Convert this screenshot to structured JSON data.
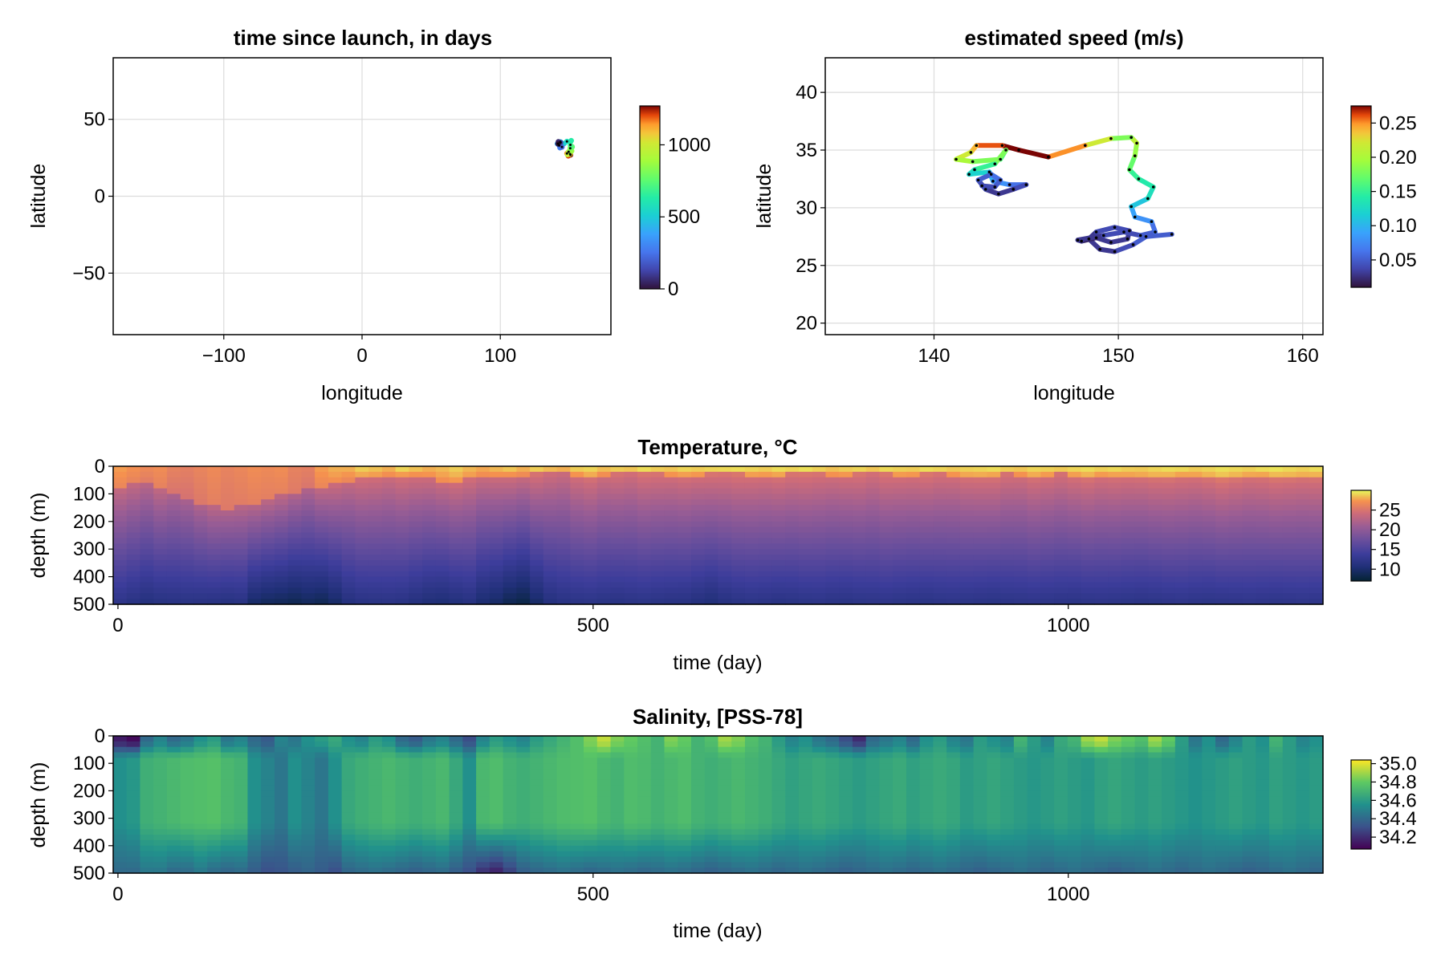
{
  "chart_data": [
    {
      "id": "launch",
      "type": "scatter",
      "title": "time since launch, in days",
      "xlabel": "longitude",
      "ylabel": "latitude",
      "xlim": [
        -180,
        180
      ],
      "ylim": [
        -90,
        90
      ],
      "xticks": [
        -100,
        0,
        100
      ],
      "xtick_labels": [
        "−100",
        "0",
        "100"
      ],
      "yticks": [
        -50,
        0,
        50
      ],
      "ytick_labels": [
        "−50",
        "0",
        "50"
      ],
      "grid": true,
      "colormap": "turbo",
      "colorbar": {
        "range": [
          0,
          1270
        ],
        "ticks": [
          0,
          500,
          1000
        ],
        "tick_labels": [
          "0",
          "500",
          "1000"
        ]
      },
      "track": [
        [
          150.8,
          26.9
        ],
        [
          149.2,
          26.2
        ],
        [
          148.2,
          27.8
        ],
        [
          149.8,
          28.6
        ],
        [
          150.5,
          27.4
        ],
        [
          148.6,
          27.1
        ],
        [
          149.4,
          28.9
        ],
        [
          151.6,
          29.4
        ],
        [
          150.6,
          31.2
        ],
        [
          152.0,
          32.1
        ],
        [
          150.7,
          33.4
        ],
        [
          151.3,
          36.1
        ],
        [
          148.2,
          35.6
        ],
        [
          146.2,
          34.3
        ],
        [
          143.5,
          35.3
        ],
        [
          141.3,
          34.1
        ],
        [
          142.6,
          33.0
        ],
        [
          143.2,
          31.5
        ],
        [
          144.6,
          32.0
        ],
        [
          142.3,
          33.6
        ],
        [
          143.6,
          34.9
        ],
        [
          142.0,
          35.4
        ],
        [
          141.8,
          34.1
        ]
      ]
    },
    {
      "id": "speed",
      "type": "line",
      "title": "estimated speed (m/s)",
      "xlabel": "longitude",
      "ylabel": "latitude",
      "xlim": [
        134.1,
        161.1
      ],
      "ylim": [
        19.0,
        43.0
      ],
      "xticks": [
        140,
        150,
        160
      ],
      "xtick_labels": [
        "140",
        "150",
        "160"
      ],
      "yticks": [
        20,
        25,
        30,
        35,
        40
      ],
      "ytick_labels": [
        "20",
        "25",
        "30",
        "35",
        "40"
      ],
      "grid": true,
      "colormap": "turbo",
      "colorbar": {
        "range": [
          0.01,
          0.275
        ],
        "ticks": [
          0.05,
          0.1,
          0.15,
          0.2,
          0.25
        ],
        "tick_labels": [
          "0.05",
          "0.10",
          "0.15",
          "0.20",
          "0.25"
        ]
      },
      "track": [
        [
          152.9,
          27.7
        ],
        [
          151.5,
          27.5
        ],
        [
          150.8,
          26.8
        ],
        [
          149.8,
          26.2
        ],
        [
          149.0,
          26.4
        ],
        [
          148.4,
          27.3
        ],
        [
          148.8,
          27.9
        ],
        [
          149.8,
          28.3
        ],
        [
          150.6,
          28.0
        ],
        [
          150.5,
          27.3
        ],
        [
          149.6,
          27.0
        ],
        [
          148.8,
          27.4
        ],
        [
          148.0,
          27.1
        ],
        [
          147.8,
          27.2
        ],
        [
          149.2,
          27.6
        ],
        [
          150.3,
          27.9
        ],
        [
          151.2,
          27.6
        ],
        [
          152.0,
          27.9
        ],
        [
          151.8,
          28.8
        ],
        [
          150.9,
          29.2
        ],
        [
          150.7,
          30.1
        ],
        [
          151.6,
          30.8
        ],
        [
          151.9,
          31.8
        ],
        [
          151.1,
          32.5
        ],
        [
          150.6,
          33.3
        ],
        [
          150.9,
          34.5
        ],
        [
          151.0,
          35.6
        ],
        [
          150.7,
          36.1
        ],
        [
          149.6,
          36.0
        ],
        [
          148.2,
          35.4
        ],
        [
          146.2,
          34.4
        ],
        [
          144.6,
          35.0
        ],
        [
          143.7,
          35.4
        ],
        [
          142.3,
          35.4
        ],
        [
          142.0,
          34.8
        ],
        [
          141.2,
          34.2
        ],
        [
          142.1,
          34.0
        ],
        [
          143.6,
          34.2
        ],
        [
          143.9,
          35.0
        ],
        [
          143.3,
          33.8
        ],
        [
          142.2,
          33.3
        ],
        [
          141.9,
          32.9
        ],
        [
          143.0,
          33.1
        ],
        [
          143.2,
          32.3
        ],
        [
          144.1,
          32.0
        ],
        [
          145.0,
          32.0
        ],
        [
          144.3,
          31.6
        ],
        [
          143.5,
          31.2
        ],
        [
          142.8,
          31.6
        ],
        [
          142.4,
          32.4
        ],
        [
          143.1,
          32.9
        ],
        [
          143.6,
          32.4
        ],
        [
          143.3,
          31.8
        ],
        [
          142.6,
          31.9
        ]
      ],
      "speeds": [
        0.05,
        0.05,
        0.04,
        0.03,
        0.03,
        0.03,
        0.04,
        0.04,
        0.03,
        0.03,
        0.03,
        0.02,
        0.03,
        0.03,
        0.04,
        0.04,
        0.05,
        0.06,
        0.08,
        0.09,
        0.11,
        0.13,
        0.14,
        0.15,
        0.17,
        0.19,
        0.21,
        0.18,
        0.22,
        0.25,
        0.275,
        0.275,
        0.26,
        0.24,
        0.22,
        0.2,
        0.18,
        0.16,
        0.18,
        0.15,
        0.13,
        0.12,
        0.1,
        0.08,
        0.06,
        0.04,
        0.03,
        0.03,
        0.04,
        0.05,
        0.06,
        0.05,
        0.04
      ]
    },
    {
      "id": "temperature",
      "type": "heatmap",
      "title": "Temperature, °C",
      "xlabel": "time (day)",
      "ylabel": "depth (m)",
      "xlim": [
        -5,
        1268
      ],
      "ylim": [
        0,
        500
      ],
      "x_range": [
        -5,
        1265
      ],
      "xticks": [
        0,
        500,
        1000
      ],
      "xtick_labels": [
        "0",
        "500",
        "1000"
      ],
      "yticks": [
        0,
        100,
        200,
        300,
        400,
        500
      ],
      "ytick_labels": [
        "0",
        "100",
        "200",
        "300",
        "400",
        "500"
      ],
      "y_reversed": true,
      "colormap": "thermal",
      "colorbar": {
        "range": [
          7,
          30
        ],
        "ticks": [
          10,
          15,
          20,
          25
        ],
        "tick_labels": [
          "10",
          "15",
          "20",
          "25"
        ]
      },
      "mixed_layer_temp": [
        26.5,
        26.0,
        25.5,
        26.0,
        25.0,
        24.8,
        25.3,
        25.8,
        25.4,
        25.6,
        25.9,
        25.8,
        26.0,
        25.5,
        25.0,
        26.5,
        26.8,
        26.5,
        27.2,
        27.0,
        26.8,
        27.5,
        27.2,
        26.8,
        27.0,
        27.4,
        27.0,
        26.5,
        26.9,
        27.2,
        26.8,
        27.5,
        27.0,
        26.6,
        27.3,
        27.6,
        27.0,
        27.4,
        27.2,
        27.8,
        27.5,
        27.3,
        27.6,
        27.4,
        27.6,
        27.7,
        27.8,
        27.6,
        27.5,
        27.8,
        27.6,
        27.9,
        27.5,
        27.2,
        27.4,
        27.6,
        27.3,
        27.7,
        27.5,
        27.4,
        27.8,
        27.6,
        27.3,
        27.5,
        27.6,
        27.8,
        27.4,
        27.2,
        27.6,
        27.5,
        27.3,
        27.6,
        27.8,
        27.5,
        27.7,
        27.4,
        27.3,
        27.6,
        27.8,
        27.7,
        27.4,
        27.6,
        27.9,
        27.7,
        27.5,
        27.8,
        28.0,
        27.7,
        27.5,
        27.8
      ],
      "surface_temp": [
        27.5,
        27.0,
        26.5,
        26.8,
        26.0,
        25.8,
        26.2,
        26.6,
        26.1,
        26.4,
        26.8,
        26.6,
        26.8,
        26.0,
        25.8,
        27.5,
        28.0,
        28.0,
        28.8,
        28.5,
        28.0,
        29.0,
        28.5,
        28.0,
        28.3,
        28.8,
        28.2,
        27.8,
        28.2,
        28.6,
        28.0,
        28.8,
        28.3,
        28.0,
        28.8,
        29.0,
        28.4,
        28.8,
        28.6,
        29.2,
        28.8,
        28.6,
        29.0,
        28.8,
        29.0,
        29.1,
        29.2,
        29.0,
        28.8,
        29.2,
        29.0,
        29.3,
        28.9,
        28.5,
        28.8,
        29.0,
        28.6,
        29.1,
        28.9,
        28.8,
        29.2,
        29.0,
        28.7,
        28.9,
        29.0,
        29.2,
        28.8,
        28.6,
        29.0,
        28.9,
        28.7,
        29.0,
        29.2,
        28.9,
        29.1,
        28.8,
        28.7,
        29.0,
        29.2,
        29.1,
        28.8,
        29.0,
        29.3,
        29.1,
        28.9,
        29.2,
        29.4,
        29.1,
        28.9,
        29.2
      ],
      "mixed_layer_depth_m": [
        70,
        65,
        60,
        80,
        90,
        110,
        130,
        140,
        150,
        140,
        130,
        120,
        100,
        90,
        80,
        70,
        60,
        50,
        40,
        40,
        35,
        30,
        30,
        40,
        50,
        50,
        45,
        40,
        35,
        30,
        30,
        25,
        20,
        20,
        30,
        35,
        30,
        25,
        20,
        20,
        25,
        30,
        30,
        30,
        25,
        20,
        25,
        30,
        30,
        30,
        25,
        20,
        25,
        30,
        30,
        25,
        20,
        25,
        30,
        30,
        25,
        20,
        30,
        35,
        35,
        30,
        25,
        30,
        35,
        30,
        25,
        30,
        35,
        30,
        30,
        35,
        40,
        40,
        35,
        30,
        35,
        40,
        45,
        40,
        35,
        30,
        35,
        40,
        40,
        35
      ],
      "temp_at_500m": [
        12.0,
        11.5,
        11.0,
        11.3,
        11.5,
        11.6,
        11.5,
        11.4,
        11.2,
        11.4,
        9.5,
        9.0,
        8.8,
        8.5,
        9.0,
        8.6,
        9.5,
        11.0,
        11.5,
        11.6,
        11.7,
        11.5,
        11.0,
        10.5,
        10.3,
        10.8,
        11.2,
        10.0,
        9.5,
        8.5,
        8.0,
        9.5,
        11.0,
        11.5,
        11.7,
        11.8,
        11.6,
        11.5,
        11.7,
        11.8,
        11.6,
        11.5,
        11.4,
        11.0,
        10.6,
        11.2,
        11.6,
        11.8,
        11.7,
        11.5,
        11.6,
        11.8,
        11.9,
        11.7,
        11.6,
        11.8,
        11.9,
        12.0,
        11.8,
        11.7,
        11.6,
        11.8,
        11.9,
        11.8,
        11.7,
        11.6,
        11.8,
        11.9,
        12.0,
        11.9,
        11.8,
        11.7,
        11.9,
        12.0,
        11.9,
        11.8,
        11.7,
        11.8,
        12.0,
        12.1,
        11.9,
        11.8,
        11.9,
        12.0,
        12.1,
        12.0,
        11.9,
        12.0,
        12.1,
        12.0
      ]
    },
    {
      "id": "salinity",
      "type": "heatmap",
      "title": "Salinity, [PSS-78]",
      "xlabel": "time (day)",
      "ylabel": "depth (m)",
      "xlim": [
        -5,
        1268
      ],
      "ylim": [
        0,
        500
      ],
      "x_range": [
        -5,
        1265
      ],
      "xticks": [
        0,
        500,
        1000
      ],
      "xtick_labels": [
        "0",
        "500",
        "1000"
      ],
      "yticks": [
        0,
        100,
        200,
        300,
        400,
        500
      ],
      "ytick_labels": [
        "0",
        "100",
        "200",
        "300",
        "400",
        "500"
      ],
      "y_reversed": true,
      "colormap": "viridis",
      "colorbar": {
        "range": [
          34.07,
          35.04
        ],
        "ticks": [
          34.2,
          34.4,
          34.6,
          34.8,
          35.0
        ],
        "tick_labels": [
          "34.2",
          "34.4",
          "34.6",
          "34.8",
          "35.0"
        ]
      },
      "surface_salinity": [
        34.15,
        34.1,
        34.4,
        34.5,
        34.4,
        34.45,
        34.55,
        34.6,
        34.45,
        34.5,
        34.4,
        34.35,
        34.5,
        34.45,
        34.55,
        34.6,
        34.65,
        34.55,
        34.5,
        34.6,
        34.55,
        34.4,
        34.35,
        34.45,
        34.5,
        34.4,
        34.3,
        34.5,
        34.6,
        34.55,
        34.5,
        34.6,
        34.65,
        34.7,
        34.75,
        34.85,
        34.95,
        34.85,
        34.8,
        34.75,
        34.7,
        34.85,
        34.8,
        34.7,
        34.75,
        34.9,
        34.85,
        34.75,
        34.7,
        34.6,
        34.5,
        34.55,
        34.45,
        34.4,
        34.3,
        34.2,
        34.4,
        34.45,
        34.5,
        34.4,
        34.55,
        34.6,
        34.5,
        34.45,
        34.6,
        34.55,
        34.5,
        34.7,
        34.6,
        34.5,
        34.65,
        34.7,
        34.9,
        34.95,
        34.85,
        34.8,
        34.75,
        34.9,
        34.8,
        34.6,
        34.45,
        34.55,
        34.4,
        34.5,
        34.6,
        34.55,
        34.7,
        34.6,
        34.5,
        34.55
      ],
      "subsurface_salinity": [
        34.55,
        34.58,
        34.68,
        34.7,
        34.72,
        34.74,
        34.75,
        34.76,
        34.72,
        34.7,
        34.55,
        34.5,
        34.45,
        34.55,
        34.5,
        34.45,
        34.55,
        34.65,
        34.68,
        34.7,
        34.72,
        34.7,
        34.68,
        34.7,
        34.72,
        34.65,
        34.55,
        34.72,
        34.74,
        34.7,
        34.68,
        34.7,
        34.72,
        34.74,
        34.75,
        34.76,
        34.72,
        34.7,
        34.74,
        34.73,
        34.7,
        34.72,
        34.74,
        34.7,
        34.68,
        34.7,
        34.72,
        34.7,
        34.68,
        34.65,
        34.62,
        34.64,
        34.66,
        34.64,
        34.62,
        34.6,
        34.62,
        34.64,
        34.66,
        34.62,
        34.64,
        34.66,
        34.64,
        34.6,
        34.62,
        34.64,
        34.62,
        34.6,
        34.58,
        34.6,
        34.62,
        34.6,
        34.58,
        34.62,
        34.64,
        34.62,
        34.6,
        34.62,
        34.6,
        34.58,
        34.56,
        34.58,
        34.6,
        34.62,
        34.6,
        34.58,
        34.62,
        34.6,
        34.58,
        34.6
      ],
      "salinity_at_500m": [
        34.4,
        34.4,
        34.45,
        34.45,
        34.4,
        34.4,
        34.45,
        34.4,
        34.38,
        34.4,
        34.35,
        34.3,
        34.32,
        34.35,
        34.38,
        34.35,
        34.3,
        34.38,
        34.4,
        34.42,
        34.4,
        34.38,
        34.36,
        34.38,
        34.4,
        34.35,
        34.3,
        34.2,
        34.15,
        34.25,
        34.35,
        34.38,
        34.4,
        34.42,
        34.4,
        34.38,
        34.4,
        34.42,
        34.4,
        34.38,
        34.4,
        34.42,
        34.4,
        34.38,
        34.36,
        34.38,
        34.4,
        34.42,
        34.4,
        34.38,
        34.4,
        34.42,
        34.4,
        34.38,
        34.36,
        34.38,
        34.4,
        34.42,
        34.4,
        34.38,
        34.4,
        34.42,
        34.4,
        34.38,
        34.36,
        34.38,
        34.4,
        34.42,
        34.4,
        34.38,
        34.4,
        34.42,
        34.4,
        34.38,
        34.36,
        34.38,
        34.4,
        34.42,
        34.4,
        34.38,
        34.4,
        34.42,
        34.4,
        34.38,
        34.36,
        34.38,
        34.4,
        34.42,
        34.4,
        34.38
      ]
    }
  ]
}
